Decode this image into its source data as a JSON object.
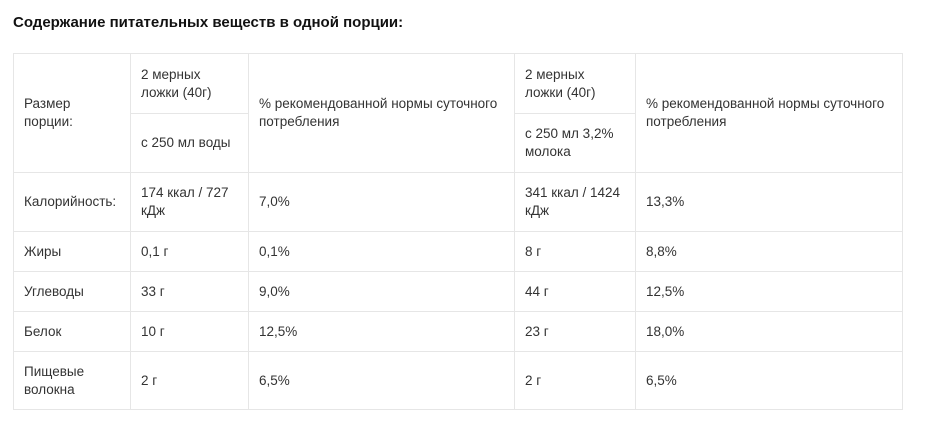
{
  "heading": "Содержание питательных веществ в одной порции:",
  "table": {
    "serving_label": "Размер порции:",
    "water": {
      "measure": "2 мерных ложки (40г)",
      "liquid": "с 250 мл воды",
      "pct_header": "% рекомендованной нормы суточного потребления"
    },
    "milk": {
      "measure": "2 мерных ложки (40г)",
      "liquid": "с 250 мл 3,2% молока",
      "pct_header": "% рекомендованной нормы суточного потребления"
    },
    "rows": [
      {
        "name": "Калорийность:",
        "water_value": "174 ккал / 727 кДж",
        "water_pct": "7,0%",
        "milk_value": "341 ккал / 1424 кДж",
        "milk_pct": "13,3%"
      },
      {
        "name": "Жиры",
        "water_value": "0,1 г",
        "water_pct": "0,1%",
        "milk_value": "8 г",
        "milk_pct": "8,8%"
      },
      {
        "name": "Углеводы",
        "water_value": "33 г",
        "water_pct": "9,0%",
        "milk_value": "44 г",
        "milk_pct": "12,5%"
      },
      {
        "name": "Белок",
        "water_value": "10 г",
        "water_pct": "12,5%",
        "milk_value": "23 г",
        "milk_pct": "18,0%"
      },
      {
        "name": "Пищевые волокна",
        "water_value": "2 г",
        "water_pct": "6,5%",
        "milk_value": "2 г",
        "milk_pct": "6,5%"
      }
    ]
  }
}
